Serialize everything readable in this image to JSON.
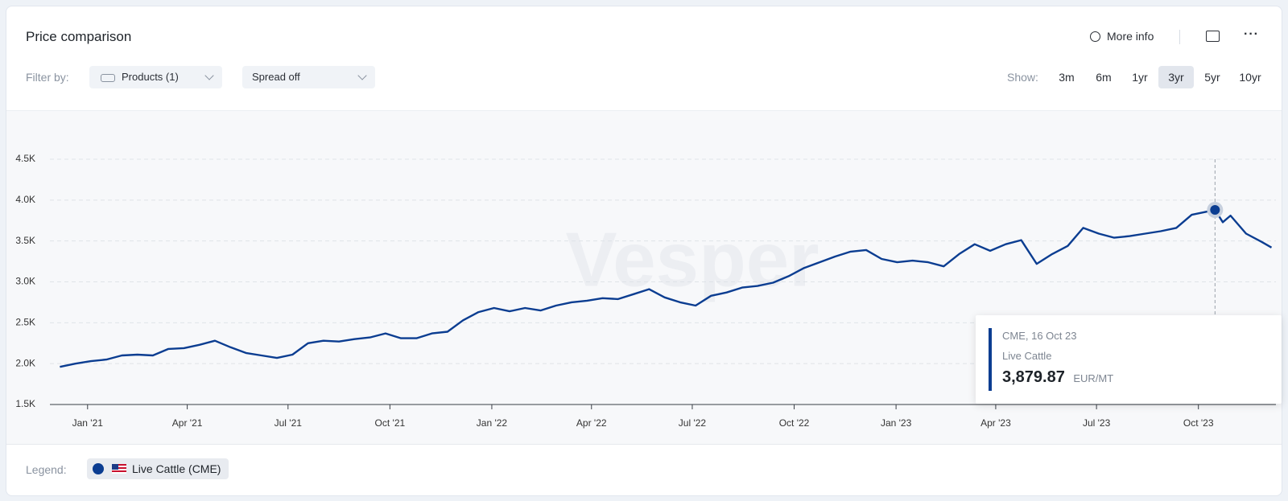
{
  "header": {
    "title": "Price comparison",
    "more_info": "More info"
  },
  "filters": {
    "label": "Filter by:",
    "products": "Products (1)",
    "spread": "Spread off"
  },
  "range": {
    "label": "Show:",
    "options": [
      "3m",
      "6m",
      "1yr",
      "3yr",
      "5yr",
      "10yr"
    ],
    "selected": "3yr"
  },
  "watermark": "Vesper",
  "legend": {
    "label": "Legend:"
  },
  "chart_data": {
    "type": "line",
    "x": [
      "2020-12-07",
      "2020-12-21",
      "2021-01-04",
      "2021-01-18",
      "2021-02-01",
      "2021-02-15",
      "2021-03-01",
      "2021-03-15",
      "2021-03-29",
      "2021-04-12",
      "2021-04-26",
      "2021-05-10",
      "2021-05-24",
      "2021-06-07",
      "2021-06-21",
      "2021-07-05",
      "2021-07-19",
      "2021-08-02",
      "2021-08-16",
      "2021-08-30",
      "2021-09-13",
      "2021-09-27",
      "2021-10-11",
      "2021-10-25",
      "2021-11-08",
      "2021-11-22",
      "2021-12-06",
      "2021-12-20",
      "2022-01-03",
      "2022-01-17",
      "2022-01-31",
      "2022-02-14",
      "2022-02-28",
      "2022-03-14",
      "2022-03-28",
      "2022-04-11",
      "2022-04-25",
      "2022-05-09",
      "2022-05-23",
      "2022-06-06",
      "2022-06-20",
      "2022-07-04",
      "2022-07-18",
      "2022-08-01",
      "2022-08-15",
      "2022-08-29",
      "2022-09-12",
      "2022-09-26",
      "2022-10-10",
      "2022-10-24",
      "2022-11-07",
      "2022-11-21",
      "2022-12-05",
      "2022-12-19",
      "2023-01-02",
      "2023-01-16",
      "2023-01-30",
      "2023-02-13",
      "2023-02-27",
      "2023-03-13",
      "2023-03-27",
      "2023-04-10",
      "2023-04-24",
      "2023-05-08",
      "2023-05-22",
      "2023-06-05",
      "2023-06-19",
      "2023-07-03",
      "2023-07-17",
      "2023-07-31",
      "2023-08-14",
      "2023-08-28",
      "2023-09-11",
      "2023-09-25",
      "2023-10-09",
      "2023-10-16",
      "2023-10-23",
      "2023-10-30",
      "2023-11-13",
      "2023-11-27",
      "2023-12-06"
    ],
    "series": [
      {
        "name": "Live Cattle (CME)",
        "color": "#0b3d91",
        "values": [
          1960,
          2000,
          2030,
          2050,
          2100,
          2110,
          2100,
          2180,
          2190,
          2230,
          2280,
          2200,
          2130,
          2100,
          2070,
          2110,
          2250,
          2280,
          2270,
          2300,
          2320,
          2370,
          2310,
          2310,
          2370,
          2390,
          2530,
          2630,
          2680,
          2640,
          2680,
          2650,
          2710,
          2750,
          2770,
          2800,
          2790,
          2850,
          2910,
          2810,
          2750,
          2710,
          2830,
          2870,
          2930,
          2950,
          2990,
          3070,
          3170,
          3240,
          3310,
          3370,
          3390,
          3280,
          3240,
          3260,
          3240,
          3190,
          3340,
          3460,
          3380,
          3460,
          3510,
          3220,
          3340,
          3440,
          3660,
          3590,
          3540,
          3560,
          3590,
          3620,
          3660,
          3820,
          3860,
          3879.87,
          3730,
          3810,
          3590,
          3490,
          3420
        ]
      }
    ],
    "xlim": [
      "2020-11-28",
      "2023-12-10"
    ],
    "xticks": [
      {
        "value": "2021-01-01",
        "label": "Jan '21"
      },
      {
        "value": "2021-04-01",
        "label": "Apr '21"
      },
      {
        "value": "2021-07-01",
        "label": "Jul '21"
      },
      {
        "value": "2021-10-01",
        "label": "Oct '21"
      },
      {
        "value": "2022-01-01",
        "label": "Jan '22"
      },
      {
        "value": "2022-04-01",
        "label": "Apr '22"
      },
      {
        "value": "2022-07-01",
        "label": "Jul '22"
      },
      {
        "value": "2022-10-01",
        "label": "Oct '22"
      },
      {
        "value": "2023-01-01",
        "label": "Jan '23"
      },
      {
        "value": "2023-04-01",
        "label": "Apr '23"
      },
      {
        "value": "2023-07-01",
        "label": "Jul '23"
      },
      {
        "value": "2023-10-01",
        "label": "Oct '23"
      }
    ],
    "ylim": [
      1500,
      4500
    ],
    "yticks": [
      {
        "value": 1500,
        "label": "1.5K"
      },
      {
        "value": 2000,
        "label": "2.0K"
      },
      {
        "value": 2500,
        "label": "2.5K"
      },
      {
        "value": 3000,
        "label": "3.0K"
      },
      {
        "value": 3500,
        "label": "3.5K"
      },
      {
        "value": 4000,
        "label": "4.0K"
      },
      {
        "value": 4500,
        "label": "4.5K"
      }
    ],
    "grid": true,
    "tooltip": {
      "x": "2023-10-16",
      "label": "CME, 16 Oct 23",
      "name": "Live Cattle",
      "value_label": "3,879.87",
      "unit": "EUR/MT"
    }
  }
}
